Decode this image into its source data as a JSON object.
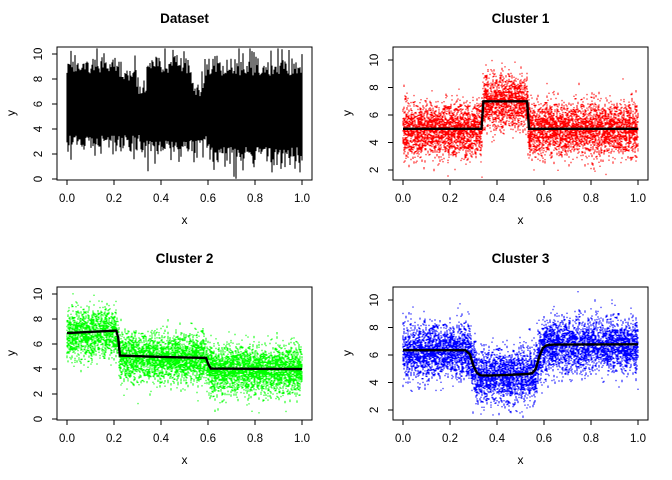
{
  "figure": {
    "background": "#ffffff",
    "layout": "2x2-grid"
  },
  "chart_data": [
    {
      "id": "dataset",
      "type": "line",
      "style": "solid-band",
      "title": "Dataset",
      "xlabel": "x",
      "ylabel": "y",
      "color": "#000000",
      "xlim": [
        0,
        1
      ],
      "ylim": [
        -0.08,
        10.56
      ],
      "x_ticks": {
        "values": [
          0,
          0.2,
          0.4,
          0.6,
          0.8,
          1.0
        ],
        "labels": [
          "0.0",
          "0.2",
          "0.4",
          "0.6",
          "0.8",
          "1.0"
        ]
      },
      "y_ticks": {
        "values": [
          0,
          2,
          4,
          6,
          8,
          10
        ],
        "labels": [
          "0",
          "2",
          "4",
          "6",
          "8",
          "10"
        ]
      },
      "grid": false,
      "legend": "none",
      "band": {
        "source_curves": [
          1,
          2,
          3
        ],
        "core_offset": 1.45,
        "fringe_scale": 0.9,
        "spike_prob": 0.015,
        "spike_extra": 1.4,
        "clip": [
          0.02,
          10.45
        ],
        "seed": 101
      }
    },
    {
      "id": "cluster1",
      "type": "scatter",
      "style": "dotted-points-with-mean",
      "title": "Cluster 1",
      "xlabel": "x",
      "ylabel": "y",
      "color": "#ff0000",
      "mean_color": "#000000",
      "xlim": [
        0,
        1
      ],
      "ylim": [
        1.27,
        10.95
      ],
      "x_ticks": {
        "values": [
          0,
          0.2,
          0.4,
          0.6,
          0.8,
          1.0
        ],
        "labels": [
          "0.0",
          "0.2",
          "0.4",
          "0.6",
          "0.8",
          "1.0"
        ]
      },
      "y_ticks": {
        "values": [
          2,
          4,
          6,
          8,
          10
        ],
        "labels": [
          "2",
          "4",
          "6",
          "8",
          "10"
        ]
      },
      "grid": false,
      "legend": "none",
      "mean_curve": [
        [
          0,
          5.0
        ],
        [
          0.334,
          5.0
        ],
        [
          0.342,
          7.0
        ],
        [
          0.528,
          7.0
        ],
        [
          0.536,
          5.0
        ],
        [
          1,
          5.0
        ]
      ],
      "noise_sd": 0.95,
      "n_points": 7000,
      "seed": 7
    },
    {
      "id": "cluster2",
      "type": "scatter",
      "style": "dotted-points-with-mean",
      "title": "Cluster 2",
      "xlabel": "x",
      "ylabel": "y",
      "color": "#00ff00",
      "mean_color": "#000000",
      "xlim": [
        0,
        1
      ],
      "ylim": [
        -0.08,
        10.56
      ],
      "x_ticks": {
        "values": [
          0,
          0.2,
          0.4,
          0.6,
          0.8,
          1.0
        ],
        "labels": [
          "0.0",
          "0.2",
          "0.4",
          "0.6",
          "0.8",
          "1.0"
        ]
      },
      "y_ticks": {
        "values": [
          0,
          2,
          4,
          6,
          8,
          10
        ],
        "labels": [
          "0",
          "2",
          "4",
          "6",
          "8",
          "10"
        ]
      },
      "grid": false,
      "legend": "none",
      "mean_curve": [
        [
          0,
          6.87
        ],
        [
          0.21,
          7.07
        ],
        [
          0.218,
          6.5
        ],
        [
          0.225,
          5.07
        ],
        [
          0.4,
          4.97
        ],
        [
          0.592,
          4.89
        ],
        [
          0.601,
          4.4
        ],
        [
          0.612,
          4.03
        ],
        [
          1,
          3.99
        ]
      ],
      "noise_sd": 0.95,
      "n_points": 7000,
      "seed": 13
    },
    {
      "id": "cluster3",
      "type": "scatter",
      "style": "dotted-points-with-mean",
      "title": "Cluster 3",
      "xlabel": "x",
      "ylabel": "y",
      "color": "#0000ff",
      "mean_color": "#000000",
      "xlim": [
        0,
        1
      ],
      "ylim": [
        1.27,
        10.95
      ],
      "x_ticks": {
        "values": [
          0,
          0.2,
          0.4,
          0.6,
          0.8,
          1.0
        ],
        "labels": [
          "0.0",
          "0.2",
          "0.4",
          "0.6",
          "0.8",
          "1.0"
        ]
      },
      "y_ticks": {
        "values": [
          2,
          4,
          6,
          8,
          10
        ],
        "labels": [
          "2",
          "4",
          "6",
          "8",
          "10"
        ]
      },
      "grid": false,
      "legend": "none",
      "mean_curve": [
        [
          0,
          6.35
        ],
        [
          0.265,
          6.35
        ],
        [
          0.285,
          6.05
        ],
        [
          0.3,
          5.2
        ],
        [
          0.315,
          4.7
        ],
        [
          0.33,
          4.52
        ],
        [
          0.36,
          4.5
        ],
        [
          0.45,
          4.55
        ],
        [
          0.53,
          4.62
        ],
        [
          0.55,
          4.68
        ],
        [
          0.565,
          5.0
        ],
        [
          0.58,
          5.9
        ],
        [
          0.595,
          6.5
        ],
        [
          0.61,
          6.7
        ],
        [
          0.64,
          6.76
        ],
        [
          1,
          6.78
        ]
      ],
      "noise_sd": 0.95,
      "n_points": 7000,
      "seed": 29
    }
  ]
}
